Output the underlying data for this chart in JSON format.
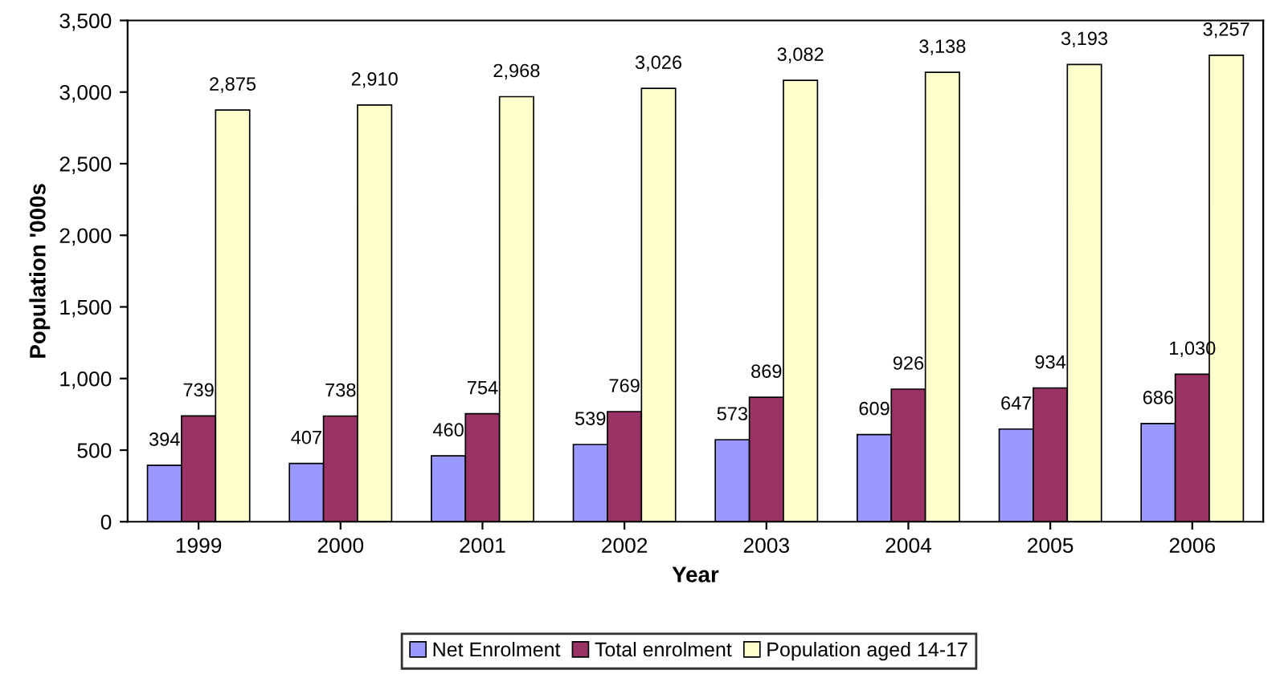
{
  "chart_data": {
    "type": "bar",
    "xlabel": "Year",
    "ylabel": "Population '000s",
    "categories": [
      "1999",
      "2000",
      "2001",
      "2002",
      "2003",
      "2004",
      "2005",
      "2006"
    ],
    "series": [
      {
        "name": "Net Enrolment",
        "color": "#9999ff",
        "values": [
          394,
          407,
          460,
          539,
          573,
          609,
          647,
          686
        ],
        "value_labels": [
          "394",
          "407",
          "460",
          "539",
          "573",
          "609",
          "647",
          "686"
        ]
      },
      {
        "name": "Total enrolment",
        "color": "#993366",
        "values": [
          739,
          738,
          754,
          769,
          869,
          926,
          934,
          1030
        ],
        "value_labels": [
          "739",
          "738",
          "754",
          "769",
          "869",
          "926",
          "934",
          "1,030"
        ]
      },
      {
        "name": "Population aged 14-17",
        "color": "#ffffcc",
        "values": [
          2875,
          2910,
          2968,
          3026,
          3082,
          3138,
          3193,
          3257
        ],
        "value_labels": [
          "2,875",
          "2,910",
          "2,968",
          "3,026",
          "3,082",
          "3,138",
          "3,193",
          "3,257"
        ]
      }
    ],
    "ylim": [
      0,
      3500
    ],
    "yticks": [
      {
        "value": 0,
        "label": "0"
      },
      {
        "value": 500,
        "label": "500"
      },
      {
        "value": 1000,
        "label": "1,000"
      },
      {
        "value": 1500,
        "label": "1,500"
      },
      {
        "value": 2000,
        "label": "2,000"
      },
      {
        "value": 2500,
        "label": "2,500"
      },
      {
        "value": 3000,
        "label": "3,000"
      },
      {
        "value": 3500,
        "label": "3,500"
      }
    ],
    "legend": "bottom",
    "grid": false
  }
}
